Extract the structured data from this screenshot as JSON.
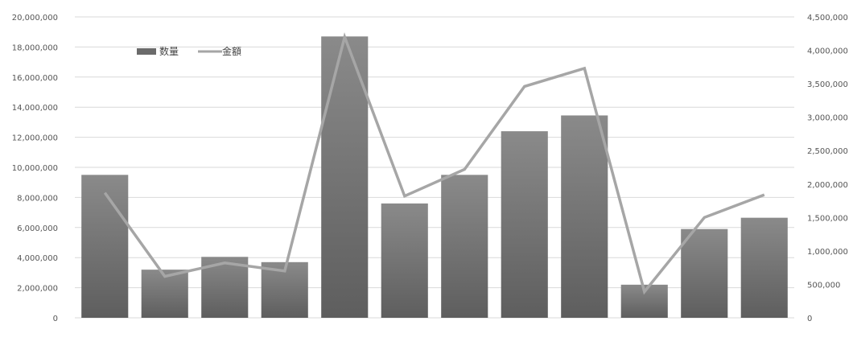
{
  "chart_data": {
    "type": "bar",
    "categories": [
      "",
      "",
      "",
      "",
      "",
      "",
      "",
      "",
      "",
      "",
      "",
      ""
    ],
    "series": [
      {
        "name": "数量",
        "type": "bar",
        "axis": "left",
        "values": [
          9500000,
          3200000,
          4050000,
          3700000,
          18700000,
          7600000,
          9500000,
          12400000,
          13450000,
          2200000,
          5900000,
          6650000
        ]
      },
      {
        "name": "金額",
        "type": "line",
        "axis": "right",
        "values": [
          1870000,
          620000,
          820000,
          700000,
          4200000,
          1820000,
          2220000,
          3460000,
          3730000,
          390000,
          1500000,
          1840000
        ]
      }
    ],
    "y_left": {
      "min": 0,
      "max": 20000000,
      "step": 2000000,
      "tick_labels": [
        "0",
        "2,000,000",
        "4,000,000",
        "6,000,000",
        "8,000,000",
        "10,000,000",
        "12,000,000",
        "14,000,000",
        "16,000,000",
        "18,000,000",
        "20,000,000"
      ]
    },
    "y_right": {
      "min": 0,
      "max": 4500000,
      "step": 500000,
      "tick_labels": [
        "0",
        "500,000",
        "1,000,000",
        "1,500,000",
        "2,000,000",
        "2,500,000",
        "3,000,000",
        "3,500,000",
        "4,000,000",
        "4,500,000"
      ]
    },
    "grid": true,
    "legend_position": "top-left",
    "colors": {
      "bar": "#6b6b6b",
      "bar_light": "#8a8a8a",
      "line": "#a6a6a6",
      "grid": "#d9d9d9",
      "axis_text": "#555555"
    },
    "title": "",
    "xlabel": "",
    "ylabel": ""
  }
}
